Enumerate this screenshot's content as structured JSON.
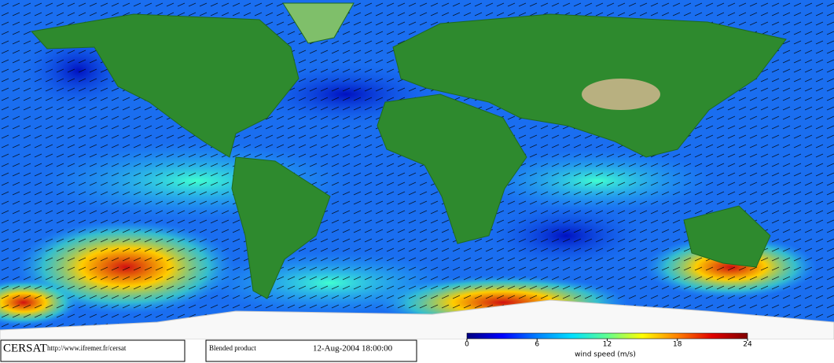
{
  "header": {
    "logo": "CERSAT",
    "url": "http://www.ifremer.fr/cersat",
    "product": "Blended product",
    "timestamp": "12-Aug-2004 18:00:00"
  },
  "colorbar": {
    "label": "wind speed (m/s)",
    "range": [
      0,
      24
    ],
    "ticks": [
      0,
      6,
      12,
      18,
      24
    ],
    "colors": [
      "#000080",
      "#0000ff",
      "#0080ff",
      "#00e0ff",
      "#60ff90",
      "#ffff00",
      "#ff8000",
      "#e00000",
      "#800000"
    ]
  }
}
